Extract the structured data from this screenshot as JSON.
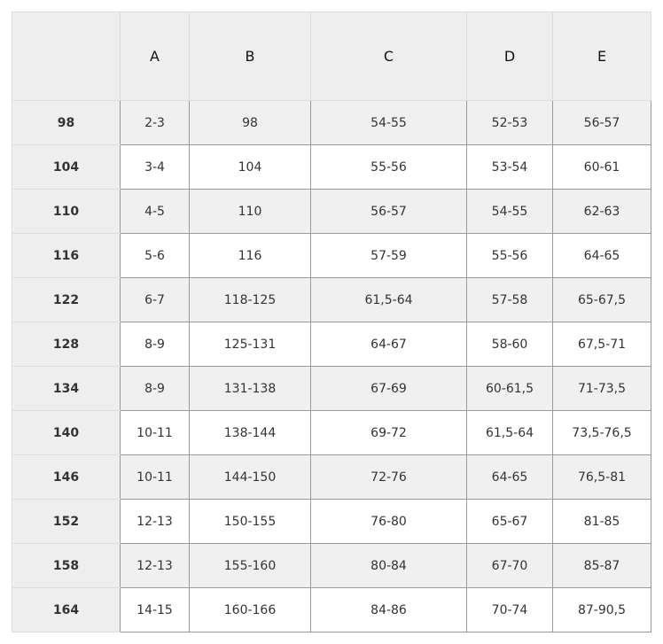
{
  "headers": [
    "",
    "A",
    "B",
    "C",
    "D",
    "E"
  ],
  "rows": [
    [
      "98",
      "2-3",
      "98",
      "54-55",
      "52-53",
      "56-57"
    ],
    [
      "104",
      "3-4",
      "104",
      "55-56",
      "53-54",
      "60-61"
    ],
    [
      "110",
      "4-5",
      "110",
      "56-57",
      "54-55",
      "62-63"
    ],
    [
      "116",
      "5-6",
      "116",
      "57-59",
      "55-56",
      "64-65"
    ],
    [
      "122",
      "6-7",
      "118-125",
      "61,5-64",
      "57-58",
      "65-67,5"
    ],
    [
      "128",
      "8-9",
      "125-131",
      "64-67",
      "58-60",
      "67,5-71"
    ],
    [
      "134",
      "8-9",
      "131-138",
      "67-69",
      "60-61,5",
      "71-73,5"
    ],
    [
      "140",
      "10-11",
      "138-144",
      "69-72",
      "61,5-64",
      "73,5-76,5"
    ],
    [
      "146",
      "10-11",
      "144-150",
      "72-76",
      "64-65",
      "76,5-81"
    ],
    [
      "152",
      "12-13",
      "150-155",
      "76-80",
      "65-67",
      "81-85"
    ],
    [
      "158",
      "12-13",
      "155-160",
      "80-84",
      "67-70",
      "85-87"
    ],
    [
      "164",
      "14-15",
      "160-166",
      "84-86",
      "70-74",
      "87-90,5"
    ]
  ]
}
